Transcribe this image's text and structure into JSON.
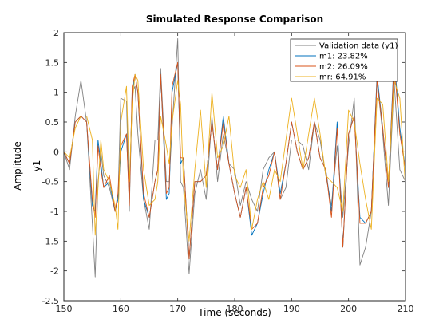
{
  "chart_data": {
    "type": "line",
    "title": "Simulated Response Comparison",
    "xlabel": "Time (seconds)",
    "ylabel": "Amplitude",
    "channel_label": "y1",
    "xlim": [
      150,
      210
    ],
    "ylim": [
      -2.5,
      2
    ],
    "xticks": [
      150,
      160,
      170,
      180,
      190,
      200,
      210
    ],
    "yticks": [
      -2.5,
      -2,
      -1.5,
      -1,
      -0.5,
      0,
      0.5,
      1,
      1.5,
      2
    ],
    "grid": false,
    "legend_position": "top-right",
    "x": [
      150,
      151,
      152,
      153,
      154,
      155,
      155.5,
      156,
      156.5,
      157,
      158,
      159,
      159.5,
      160,
      161,
      161.5,
      162,
      162.5,
      163,
      164,
      165,
      166,
      166.5,
      167,
      168,
      168.5,
      169,
      170,
      170.5,
      171,
      172,
      173,
      174,
      175,
      176,
      177,
      178,
      179,
      180,
      181,
      182,
      183,
      184,
      185,
      186,
      187,
      188,
      189,
      190,
      191,
      192,
      193,
      194,
      195,
      196,
      197,
      198,
      199,
      200,
      201,
      202,
      203,
      204,
      205,
      206,
      207,
      208,
      209,
      210
    ],
    "series": [
      {
        "name": "Validation data (y1)",
        "color": "#808080",
        "values": [
          0.0,
          -0.3,
          0.6,
          1.2,
          0.5,
          -1.2,
          -2.1,
          -0.5,
          0.0,
          -0.4,
          -0.6,
          -1.0,
          -0.8,
          0.9,
          0.85,
          -1.0,
          1.0,
          1.1,
          0.3,
          -0.8,
          -1.3,
          0.2,
          0.2,
          1.4,
          -0.5,
          -0.5,
          0.4,
          1.9,
          -0.5,
          -0.6,
          -2.05,
          -0.7,
          -0.3,
          -0.8,
          0.6,
          -0.5,
          0.3,
          -0.2,
          -0.3,
          -0.9,
          -0.5,
          -0.8,
          -1.0,
          -0.3,
          -0.1,
          0.0,
          -0.8,
          -0.6,
          0.2,
          0.2,
          0.1,
          -0.3,
          0.5,
          0.2,
          -0.4,
          -0.9,
          0.1,
          -1.1,
          0.1,
          0.9,
          -1.9,
          -1.6,
          -1.0,
          1.2,
          0.3,
          -0.9,
          1.2,
          -0.3,
          -0.5
        ]
      },
      {
        "name": "m1: 23.82%",
        "color": "#0072BD",
        "values": [
          0.0,
          -0.2,
          0.5,
          0.6,
          0.5,
          -0.9,
          -1.0,
          0.2,
          -0.2,
          -0.6,
          -0.5,
          -1.0,
          -0.8,
          0.0,
          0.3,
          -0.8,
          1.0,
          1.3,
          1.0,
          -0.8,
          -1.1,
          -0.5,
          -0.3,
          1.3,
          -0.8,
          -0.7,
          1.0,
          1.5,
          -0.2,
          -0.1,
          -1.8,
          -0.5,
          -0.5,
          -0.4,
          0.5,
          -0.3,
          0.6,
          -0.2,
          -0.7,
          -1.1,
          -0.6,
          -1.4,
          -1.2,
          -0.7,
          -0.3,
          0.0,
          -0.7,
          -0.2,
          0.5,
          0.0,
          -0.3,
          -0.1,
          0.5,
          -0.1,
          -0.3,
          -1.0,
          0.5,
          -1.6,
          0.3,
          0.6,
          -1.1,
          -1.2,
          -1.0,
          1.3,
          0.4,
          -0.6,
          1.6,
          0.4,
          -0.3
        ]
      },
      {
        "name": "m2: 26.09%",
        "color": "#D95319",
        "values": [
          0.0,
          -0.2,
          0.5,
          0.6,
          0.5,
          -0.8,
          -1.1,
          0.1,
          -0.3,
          -0.6,
          -0.4,
          -1.0,
          -0.7,
          0.1,
          0.3,
          -0.9,
          1.1,
          1.3,
          1.0,
          -0.7,
          -1.1,
          -0.5,
          -0.3,
          1.3,
          -0.7,
          -0.6,
          1.1,
          1.5,
          -0.1,
          -0.1,
          -1.8,
          -0.5,
          -0.5,
          -0.4,
          0.5,
          -0.3,
          0.5,
          -0.2,
          -0.7,
          -1.1,
          -0.6,
          -1.3,
          -1.2,
          -0.6,
          -0.4,
          0.0,
          -0.8,
          -0.2,
          0.5,
          0.0,
          -0.3,
          -0.1,
          0.5,
          -0.1,
          -0.3,
          -1.1,
          0.4,
          -1.6,
          0.3,
          0.6,
          -1.2,
          -1.2,
          -1.0,
          1.2,
          0.4,
          -0.6,
          1.5,
          0.3,
          -0.3
        ]
      },
      {
        "name": "mr: 64.91%",
        "color": "#EDB120",
        "values": [
          0.0,
          -0.1,
          0.4,
          0.6,
          0.6,
          0.2,
          -1.4,
          -0.6,
          0.2,
          -0.3,
          -0.5,
          -0.9,
          -1.3,
          0.5,
          1.1,
          -0.5,
          0.8,
          1.3,
          1.2,
          -0.3,
          -0.9,
          -0.8,
          -0.5,
          0.6,
          0.1,
          -0.2,
          0.5,
          1.2,
          0.8,
          -0.5,
          -1.5,
          -0.3,
          0.7,
          -0.6,
          1.0,
          -0.1,
          0.1,
          0.6,
          -0.4,
          -0.6,
          -0.3,
          -1.3,
          -0.8,
          -0.5,
          -0.8,
          -0.3,
          -0.5,
          0.2,
          0.9,
          0.3,
          -0.3,
          0.3,
          0.9,
          0.3,
          -0.4,
          -0.5,
          -0.6,
          -1.0,
          0.7,
          0.5,
          -0.2,
          -0.8,
          -1.3,
          0.9,
          0.8,
          -0.5,
          1.2,
          0.9,
          -0.6
        ]
      }
    ]
  }
}
